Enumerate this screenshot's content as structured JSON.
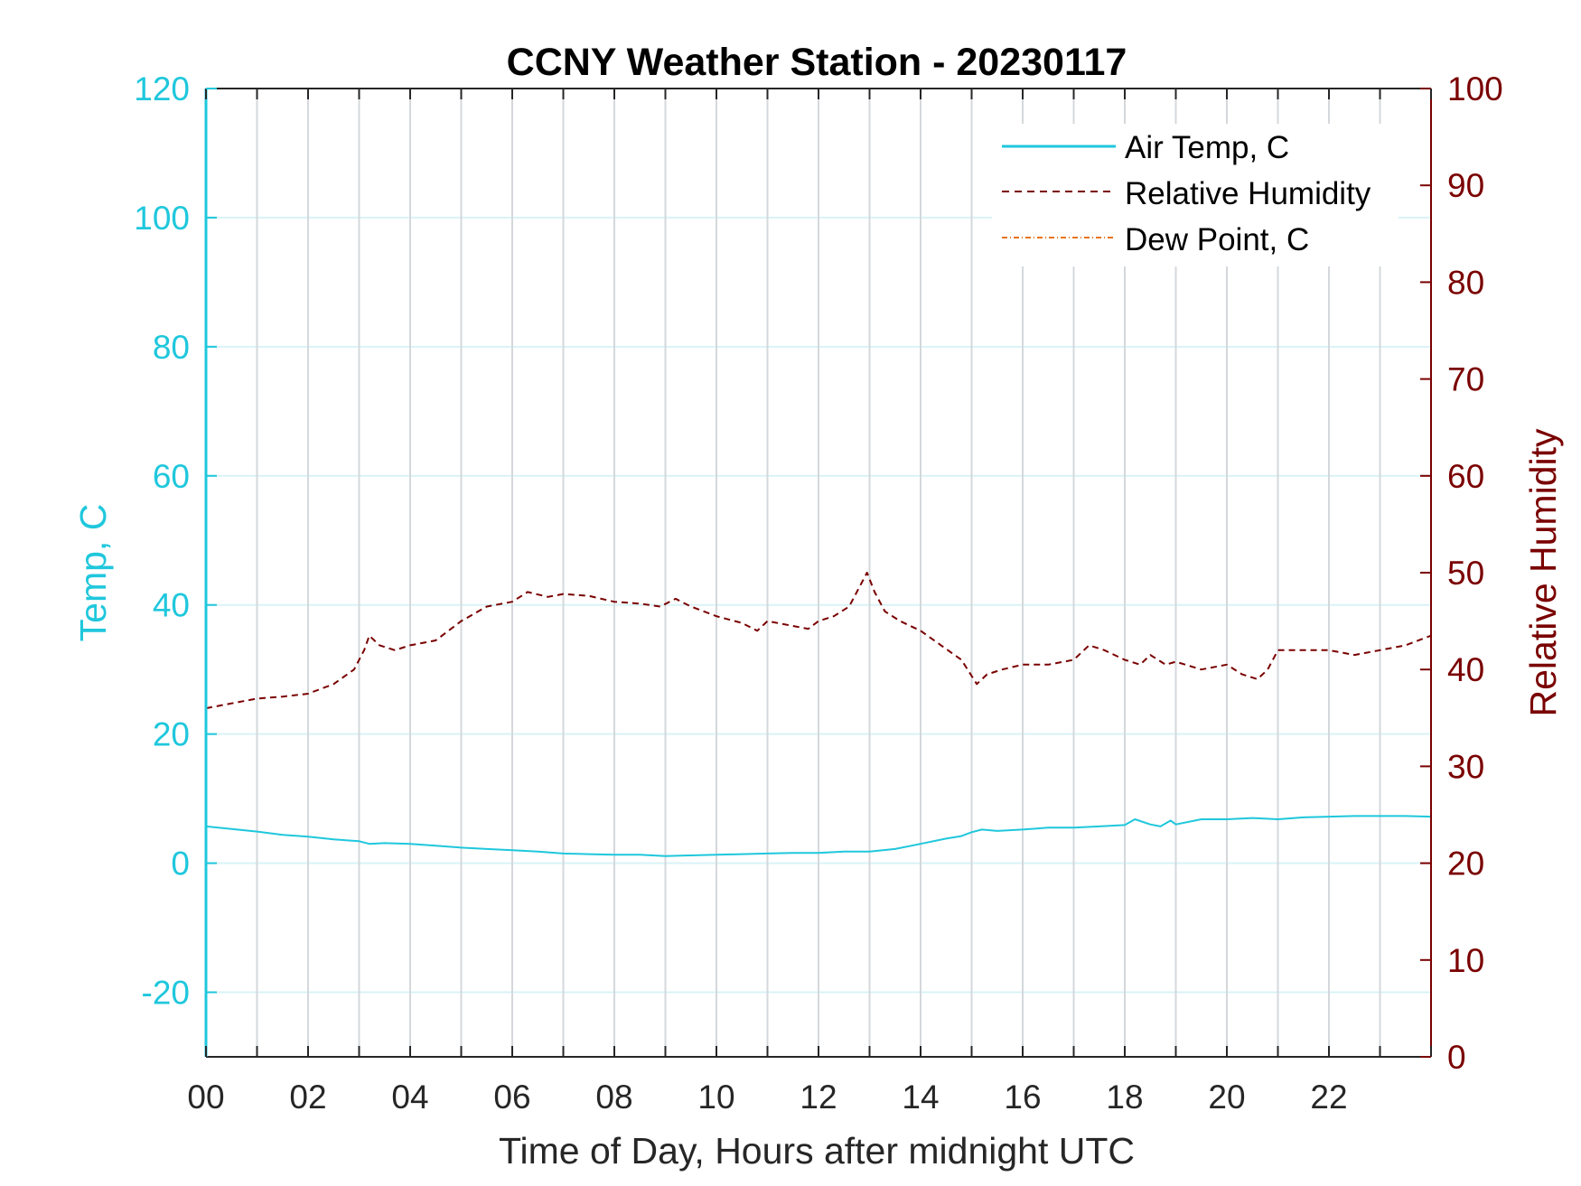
{
  "chart_data": {
    "type": "line",
    "title": "CCNY Weather Station - 20230117",
    "xlabel": "Time of Day, Hours after midnight UTC",
    "ylabel_left": "Temp, C",
    "ylabel_right": "Relative Humidity",
    "xlim": [
      0,
      24
    ],
    "ylim_left": [
      -30,
      120
    ],
    "ylim_right": [
      0,
      100
    ],
    "x_ticks": [
      0,
      2,
      4,
      6,
      8,
      10,
      12,
      14,
      16,
      18,
      20,
      22
    ],
    "x_tick_labels": [
      "00",
      "02",
      "04",
      "06",
      "08",
      "10",
      "12",
      "14",
      "16",
      "18",
      "20",
      "22"
    ],
    "y_left_ticks": [
      -20,
      0,
      20,
      40,
      60,
      80,
      100,
      120
    ],
    "y_left_tick_labels": [
      "-20",
      "0",
      "20",
      "40",
      "60",
      "80",
      "100",
      "120"
    ],
    "y_right_ticks": [
      0,
      10,
      20,
      30,
      40,
      50,
      60,
      70,
      80,
      90,
      100
    ],
    "y_right_tick_labels": [
      "0",
      "10",
      "20",
      "30",
      "40",
      "50",
      "60",
      "70",
      "80",
      "90",
      "100"
    ],
    "grid": "on (vertical lines each hour, horizontal lines at left-axis ticks)",
    "legend_position": "top-right",
    "colors": {
      "air_temp": "#1fc7dc",
      "relative_humidity": "#7a0000",
      "dew_point": "#e8741a",
      "grid_vertical": "#d4d8dc",
      "grid_horizontal": "#d9f3f7",
      "axis_text": "#262626"
    },
    "series": [
      {
        "name": "Air Temp, C",
        "axis": "left",
        "style": "solid",
        "x": [
          0,
          0.5,
          1,
          1.5,
          2,
          2.5,
          3,
          3.2,
          3.5,
          4,
          4.5,
          5,
          5.5,
          6,
          6.5,
          7,
          7.5,
          8,
          8.5,
          9,
          9.5,
          10,
          10.5,
          11,
          11.5,
          12,
          12.5,
          13,
          13.5,
          14,
          14.5,
          14.8,
          15,
          15.2,
          15.5,
          16,
          16.5,
          17,
          17.5,
          18,
          18.2,
          18.5,
          18.7,
          18.9,
          19,
          19.5,
          20,
          20.5,
          21,
          21.5,
          22,
          22.5,
          23,
          23.5,
          24
        ],
        "values": [
          5.7,
          5.3,
          4.9,
          4.4,
          4.1,
          3.7,
          3.4,
          3.0,
          3.1,
          3.0,
          2.7,
          2.4,
          2.2,
          2.0,
          1.8,
          1.5,
          1.4,
          1.3,
          1.3,
          1.1,
          1.2,
          1.3,
          1.4,
          1.5,
          1.6,
          1.6,
          1.8,
          1.8,
          2.2,
          3.0,
          3.8,
          4.2,
          4.8,
          5.2,
          5.0,
          5.2,
          5.5,
          5.5,
          5.7,
          5.9,
          6.8,
          6.0,
          5.7,
          6.6,
          6.0,
          6.8,
          6.8,
          7.0,
          6.8,
          7.1,
          7.2,
          7.3,
          7.3,
          7.3,
          7.2
        ]
      },
      {
        "name": "Relative Humidity",
        "axis": "right",
        "style": "dashed",
        "x": [
          0,
          0.5,
          1,
          1.5,
          2,
          2.5,
          2.9,
          3.1,
          3.2,
          3.4,
          3.7,
          4,
          4.5,
          5,
          5.5,
          6,
          6.3,
          6.7,
          7,
          7.5,
          8,
          8.5,
          8.9,
          9.2,
          9.5,
          10,
          10.5,
          10.8,
          11,
          11.5,
          11.8,
          12,
          12.3,
          12.6,
          12.8,
          12.95,
          13.1,
          13.3,
          13.6,
          14,
          14.4,
          14.8,
          15.1,
          15.3,
          15.6,
          16,
          16.5,
          17,
          17.3,
          17.6,
          18,
          18.3,
          18.5,
          18.8,
          19,
          19.5,
          20,
          20.3,
          20.6,
          20.8,
          21,
          21.5,
          22,
          22.5,
          23,
          23.5,
          24
        ],
        "values": [
          36.0,
          36.5,
          37.0,
          37.2,
          37.5,
          38.5,
          40.0,
          42.0,
          43.5,
          42.5,
          42.0,
          42.5,
          43.0,
          45.0,
          46.5,
          47.0,
          48.0,
          47.5,
          47.8,
          47.6,
          47.0,
          46.8,
          46.5,
          47.3,
          46.5,
          45.5,
          44.8,
          44.0,
          45.0,
          44.5,
          44.2,
          45.0,
          45.5,
          46.5,
          48.5,
          50.0,
          48.0,
          46.0,
          45.0,
          44.0,
          42.5,
          41.0,
          38.5,
          39.5,
          40.0,
          40.5,
          40.5,
          41.0,
          42.5,
          42.0,
          41.0,
          40.5,
          41.5,
          40.5,
          40.8,
          40.0,
          40.5,
          39.5,
          39.0,
          40.0,
          42.0,
          42.0,
          42.0,
          41.5,
          42.0,
          42.5,
          43.5
        ]
      },
      {
        "name": "Dew Point, C",
        "axis": "left",
        "style": "dash-dot",
        "x": [],
        "values": []
      }
    ]
  }
}
